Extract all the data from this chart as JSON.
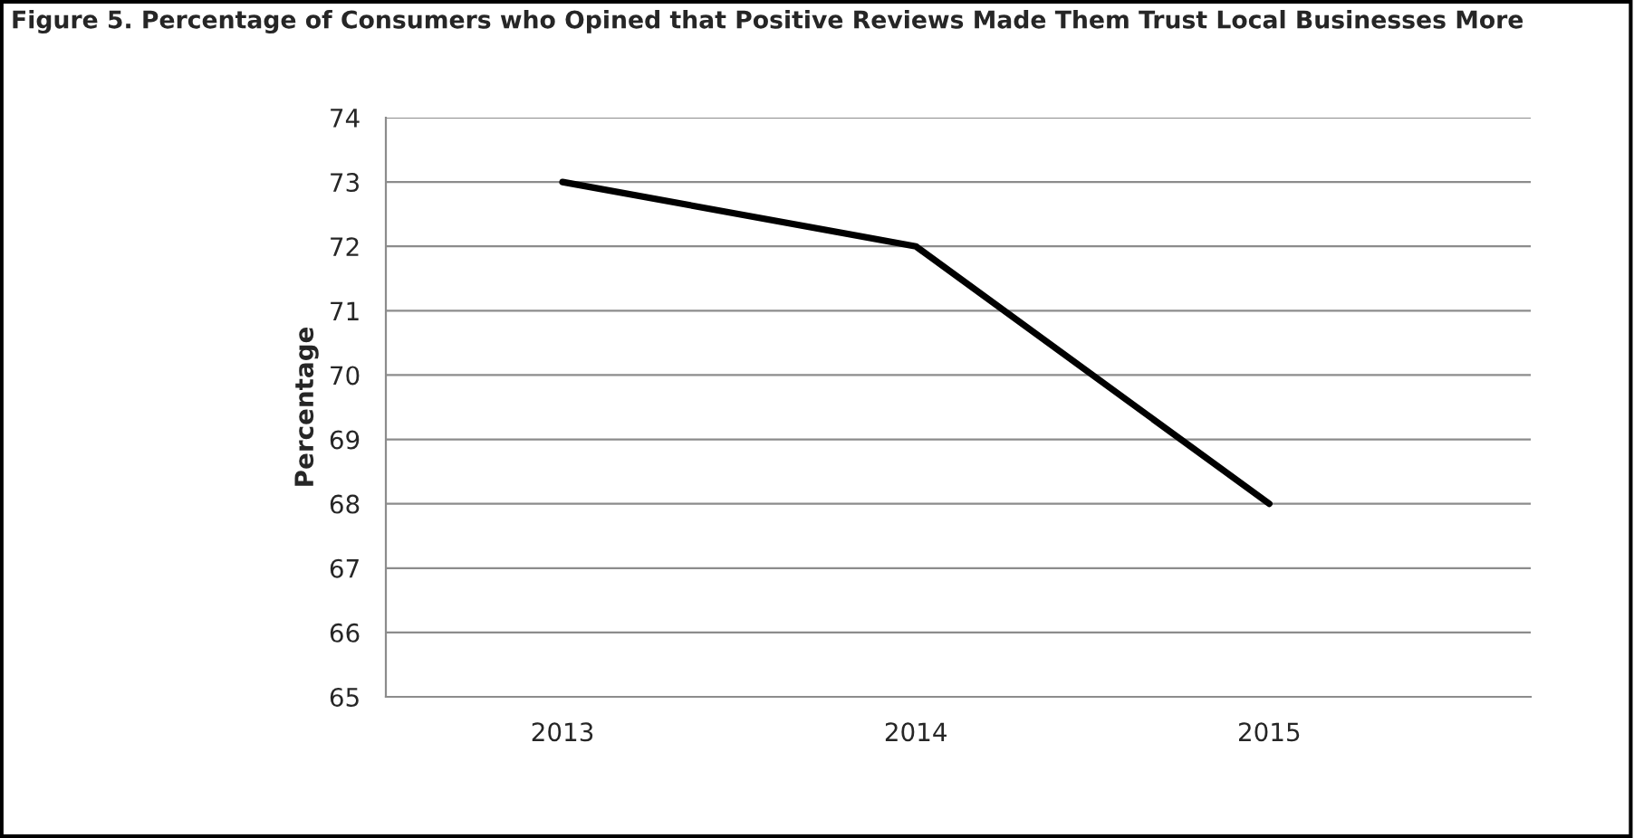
{
  "chart_data": {
    "type": "line",
    "title": "Figure 5. Percentage of Consumers who Opined that Positive Reviews Made Them Trust Local Businesses More",
    "ylabel": "Percentage",
    "categories": [
      "2013",
      "2014",
      "2015"
    ],
    "series": [
      {
        "color": "#000000",
        "values": [
          73,
          72,
          68
        ]
      }
    ],
    "ylim": [
      65,
      74
    ],
    "yticks": [
      65,
      66,
      67,
      68,
      69,
      70,
      71,
      72,
      73,
      74
    ],
    "grid": "y",
    "marker": "none",
    "line_style": "solid"
  }
}
